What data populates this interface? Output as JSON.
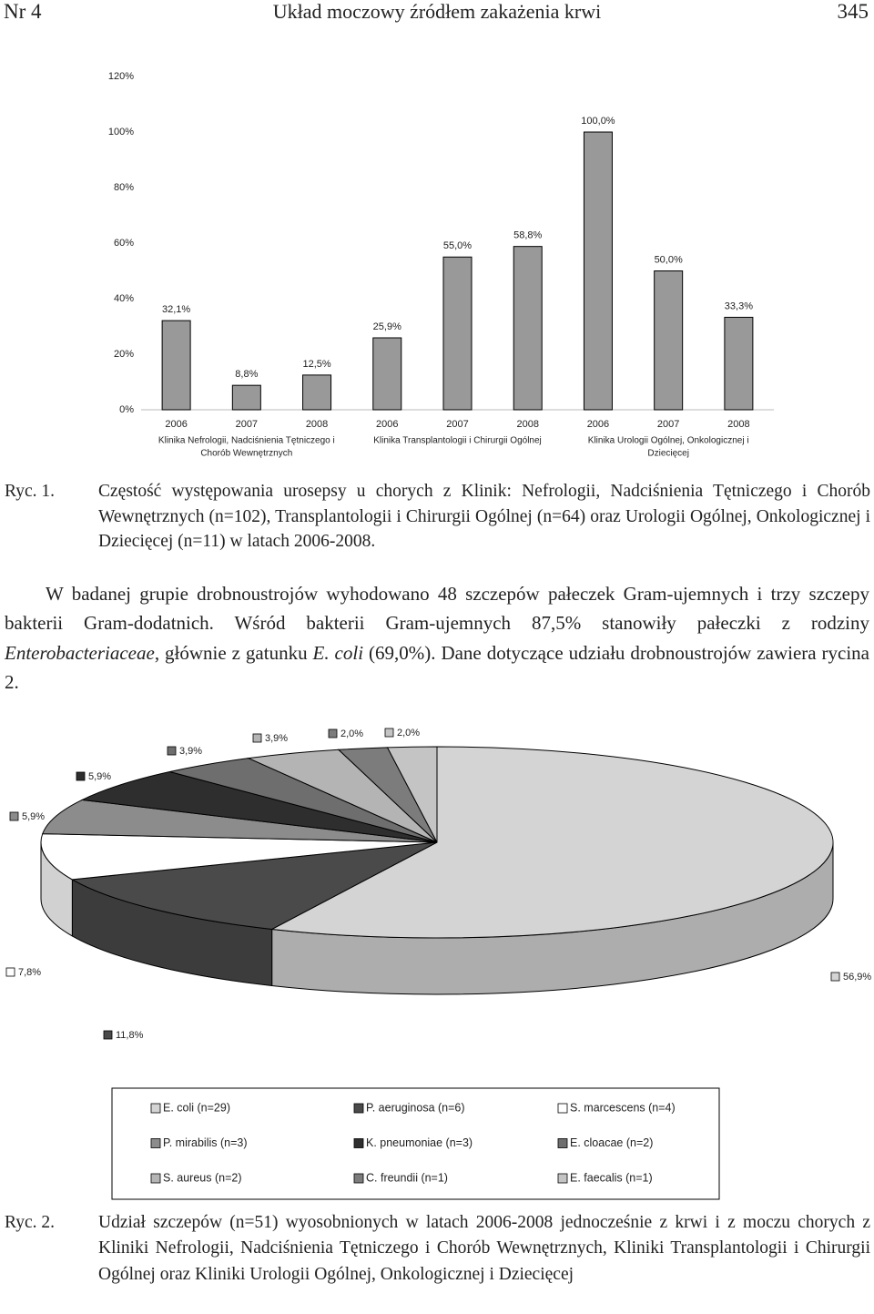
{
  "header": {
    "left": "Nr 4",
    "title": "Układ moczowy źródłem zakażenia krwi",
    "page": "345"
  },
  "chart_data": [
    {
      "type": "bar",
      "categories": [
        "2006",
        "2007",
        "2008",
        "2006",
        "2007",
        "2008",
        "2006",
        "2007",
        "2008"
      ],
      "groups": [
        {
          "label": [
            "Klinika Nefrologii, Nadciśnienia Tętniczego i",
            "Chorób Wewnętrznych"
          ]
        },
        {
          "label": [
            "Klinika Transplantologii i Chirurgii Ogólnej"
          ]
        },
        {
          "label": [
            "Klinika Urologii Ogólnej, Onkologicznej i",
            "Dziecięcej"
          ]
        }
      ],
      "values": [
        32.1,
        8.8,
        12.5,
        25.9,
        55.0,
        58.8,
        100.0,
        50.0,
        33.3
      ],
      "value_labels": [
        "32,1%",
        "8,8%",
        "12,5%",
        "25,9%",
        "55,0%",
        "58,8%",
        "100,0%",
        "50,0%",
        "33,3%"
      ],
      "color": "#999999",
      "ylim": [
        0,
        120
      ],
      "yticks": [
        {
          "value": 0,
          "label": "0%"
        },
        {
          "value": 20,
          "label": "20%"
        },
        {
          "value": 40,
          "label": "40%"
        },
        {
          "value": 60,
          "label": "60%"
        },
        {
          "value": 80,
          "label": "80%"
        },
        {
          "value": 100,
          "label": "100%"
        },
        {
          "value": 120,
          "label": "120%"
        }
      ],
      "grid": false
    },
    {
      "type": "pie",
      "labels": [
        "E. coli (n=29)",
        "P. aeruginosa (n=6)",
        "S. marcescens (n=4)",
        "P. mirabilis (n=3)",
        "K. pneumoniae (n=3)",
        "E. cloacae (n=2)",
        "S. aureus (n=2)",
        "C. freundii (n=1)",
        "E. faecalis (n=1)"
      ],
      "values": [
        56.9,
        11.8,
        7.8,
        5.9,
        5.9,
        3.9,
        3.9,
        2.0,
        2.0
      ],
      "value_labels": [
        "56,9%",
        "11,8%",
        "7,8%",
        "5,9%",
        "5,9%",
        "3,9%",
        "3,9%",
        "2,0%",
        "2,0%"
      ],
      "colors": [
        "#d4d4d4",
        "#4a4a4a",
        "#ffffff",
        "#8c8c8c",
        "#2e2e2e",
        "#6e6e6e",
        "#b4b4b4",
        "#7c7c7c",
        "#c4c4c4"
      ],
      "legend": "bottom"
    }
  ],
  "caption1": {
    "label": "Ryc. 1.",
    "text": "Częstość występowania urosepsy u chorych z Klinik: Nefrologii, Nadciśnienia Tętniczego i Chorób Wewnętrznych (n=102), Transplantologii i Chirurgii Ogólnej (n=64) oraz Urologii Ogólnej, Onkologicznej i Dziecięcej (n=11) w latach 2006-2008."
  },
  "paragraph": {
    "runs": [
      {
        "text": "W badanej grupie drobnoustrojów wyhodowano 48 szczepów pałeczek Gram-ujemnych i trzy szczepy bakterii Gram-dodatnich. Wśród bakterii Gram-ujemnych 87,5% stanowiły pałeczki z rodziny "
      },
      {
        "text": "Enterobacteriaceae",
        "style": "italic"
      },
      {
        "text": ", głównie z gatunku "
      },
      {
        "text": "E. coli",
        "style": "italic"
      },
      {
        "text": " (69,0%). Dane dotyczące udziału drobnoustrojów zawiera rycina 2."
      }
    ]
  },
  "caption2": {
    "label": "Ryc. 2.",
    "text": "Udział szczepów (n=51) wyosobnionych w latach 2006-2008 jednocześnie z krwi i z moczu chorych z Kliniki Nefrologii, Nadciśnienia Tętniczego i Chorób Wewnętrznych, Kliniki Transplantologii i Chirurgii Ogólnej oraz Kliniki Urologii Ogólnej, Onkologicznej i Dziecięcej"
  }
}
